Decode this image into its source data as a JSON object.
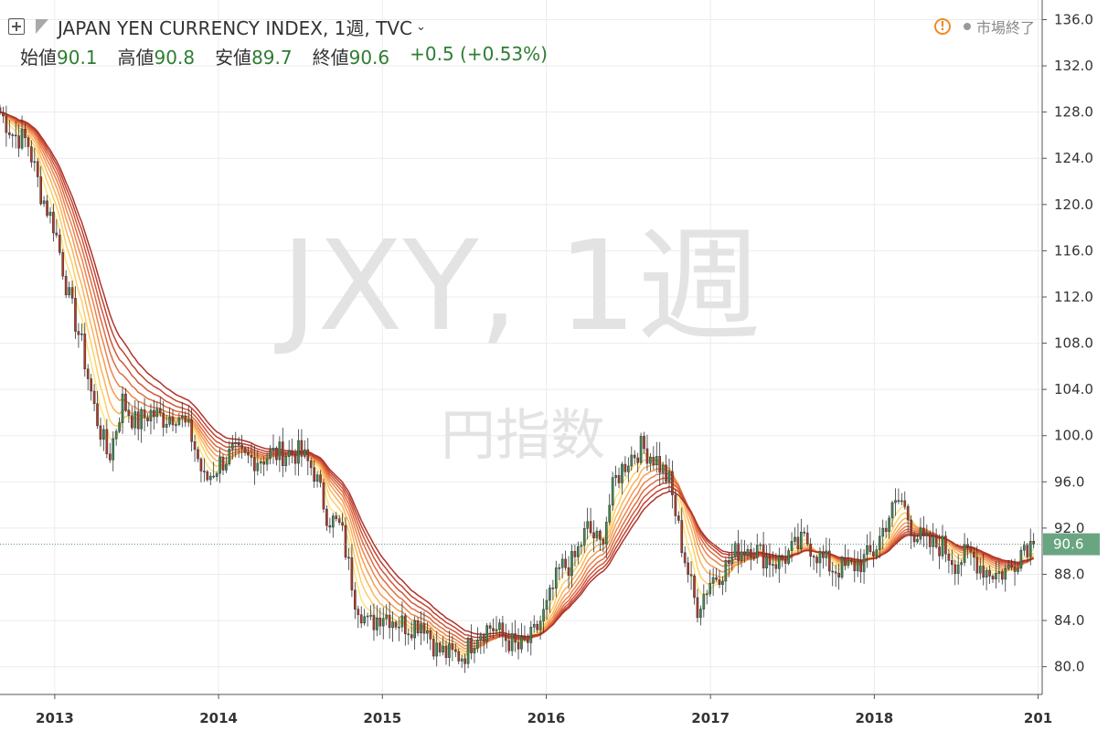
{
  "header": {
    "symbol_title": "JAPAN YEN CURRENCY INDEX, 1週, TVC",
    "open_label": "始値",
    "open_value": "90.1",
    "high_label": "高値",
    "high_value": "90.8",
    "low_label": "安値",
    "low_value": "89.7",
    "close_label": "終値",
    "close_value": "90.6",
    "change": "+0.5 (+0.53%)",
    "market_status": "市場終了"
  },
  "watermark": {
    "symbol": "JXY, 1週",
    "description": "円指数"
  },
  "colors": {
    "up": "#3d8c55",
    "down": "#b23a2a",
    "grid": "#ececec",
    "axis": "#555555",
    "price_tag": "#6aa582",
    "ma_ramp": [
      "#ffe27a",
      "#ffcd66",
      "#fbb45a",
      "#f59b52",
      "#ec834a",
      "#e06c42",
      "#d1563a",
      "#c14332",
      "#b0332b"
    ]
  },
  "chart_data": {
    "type": "candlestick",
    "timeframe": "1週",
    "current_price": 90.6,
    "current_price_label": "90.6",
    "ylim": [
      77.6,
      137.7
    ],
    "y_ticks": [
      "80.0",
      "84.0",
      "88.0",
      "92.0",
      "96.0",
      "100.0",
      "104.0",
      "108.0",
      "112.0",
      "116.0",
      "120.0",
      "124.0",
      "128.0",
      "132.0",
      "136.0"
    ],
    "x_ticks": [
      "2013",
      "2014",
      "2015",
      "2016",
      "2017",
      "2018",
      "201"
    ],
    "x_tick_dates": [
      "2013-01-01",
      "2014-01-01",
      "2015-01-01",
      "2016-01-01",
      "2017-01-01",
      "2018-01-01",
      "2019-01-01"
    ],
    "xlim_dates": [
      "2012-09-01",
      "2019-01-10"
    ],
    "close_path": [
      [
        "2012-09-01",
        128.0
      ],
      [
        "2012-10-01",
        126.0
      ],
      [
        "2012-11-01",
        125.5
      ],
      [
        "2012-12-01",
        121.0
      ],
      [
        "2013-01-01",
        118.0
      ],
      [
        "2013-02-01",
        112.0
      ],
      [
        "2013-03-01",
        108.0
      ],
      [
        "2013-04-01",
        102.0
      ],
      [
        "2013-05-01",
        98.0
      ],
      [
        "2013-06-01",
        103.0
      ],
      [
        "2013-07-01",
        101.0
      ],
      [
        "2013-08-01",
        102.0
      ],
      [
        "2013-09-01",
        101.5
      ],
      [
        "2013-10-01",
        102.0
      ],
      [
        "2013-11-01",
        100.0
      ],
      [
        "2013-12-01",
        96.0
      ],
      [
        "2014-01-01",
        97.5
      ],
      [
        "2014-02-01",
        98.5
      ],
      [
        "2014-03-01",
        98.0
      ],
      [
        "2014-04-01",
        98.0
      ],
      [
        "2014-05-01",
        98.4
      ],
      [
        "2014-06-01",
        98.5
      ],
      [
        "2014-07-01",
        98.5
      ],
      [
        "2014-08-01",
        97.0
      ],
      [
        "2014-09-01",
        93.0
      ],
      [
        "2014-10-01",
        92.0
      ],
      [
        "2014-11-01",
        86.0
      ],
      [
        "2014-12-01",
        83.5
      ],
      [
        "2015-01-01",
        84.7
      ],
      [
        "2015-02-01",
        84.0
      ],
      [
        "2015-03-01",
        83.5
      ],
      [
        "2015-04-01",
        84.0
      ],
      [
        "2015-05-01",
        81.5
      ],
      [
        "2015-06-01",
        81.0
      ],
      [
        "2015-07-01",
        81.0
      ],
      [
        "2015-08-01",
        83.0
      ],
      [
        "2015-09-01",
        83.5
      ],
      [
        "2015-10-01",
        82.5
      ],
      [
        "2015-11-01",
        81.5
      ],
      [
        "2015-12-01",
        82.5
      ],
      [
        "2016-01-01",
        85.0
      ],
      [
        "2016-02-01",
        88.5
      ],
      [
        "2016-03-01",
        89.0
      ],
      [
        "2016-04-01",
        92.0
      ],
      [
        "2016-05-01",
        90.5
      ],
      [
        "2016-06-01",
        96.0
      ],
      [
        "2016-07-01",
        98.0
      ],
      [
        "2016-08-01",
        99.0
      ],
      [
        "2016-09-01",
        98.0
      ],
      [
        "2016-10-01",
        96.0
      ],
      [
        "2016-11-01",
        90.0
      ],
      [
        "2016-12-01",
        85.0
      ],
      [
        "2017-01-01",
        87.5
      ],
      [
        "2017-02-01",
        88.5
      ],
      [
        "2017-03-01",
        90.0
      ],
      [
        "2017-04-01",
        90.5
      ],
      [
        "2017-05-01",
        89.5
      ],
      [
        "2017-06-01",
        89.0
      ],
      [
        "2017-07-01",
        90.0
      ],
      [
        "2017-08-01",
        91.0
      ],
      [
        "2017-09-01",
        89.5
      ],
      [
        "2017-10-01",
        88.5
      ],
      [
        "2017-11-01",
        88.5
      ],
      [
        "2017-12-01",
        89.0
      ],
      [
        "2018-01-01",
        90.0
      ],
      [
        "2018-02-01",
        93.0
      ],
      [
        "2018-03-01",
        94.5
      ],
      [
        "2018-04-01",
        91.5
      ],
      [
        "2018-05-01",
        90.5
      ],
      [
        "2018-06-01",
        90.5
      ],
      [
        "2018-07-01",
        89.0
      ],
      [
        "2018-08-01",
        89.8
      ],
      [
        "2018-09-01",
        88.5
      ],
      [
        "2018-10-01",
        88.0
      ],
      [
        "2018-11-01",
        88.5
      ],
      [
        "2018-12-01",
        90.6
      ]
    ]
  }
}
